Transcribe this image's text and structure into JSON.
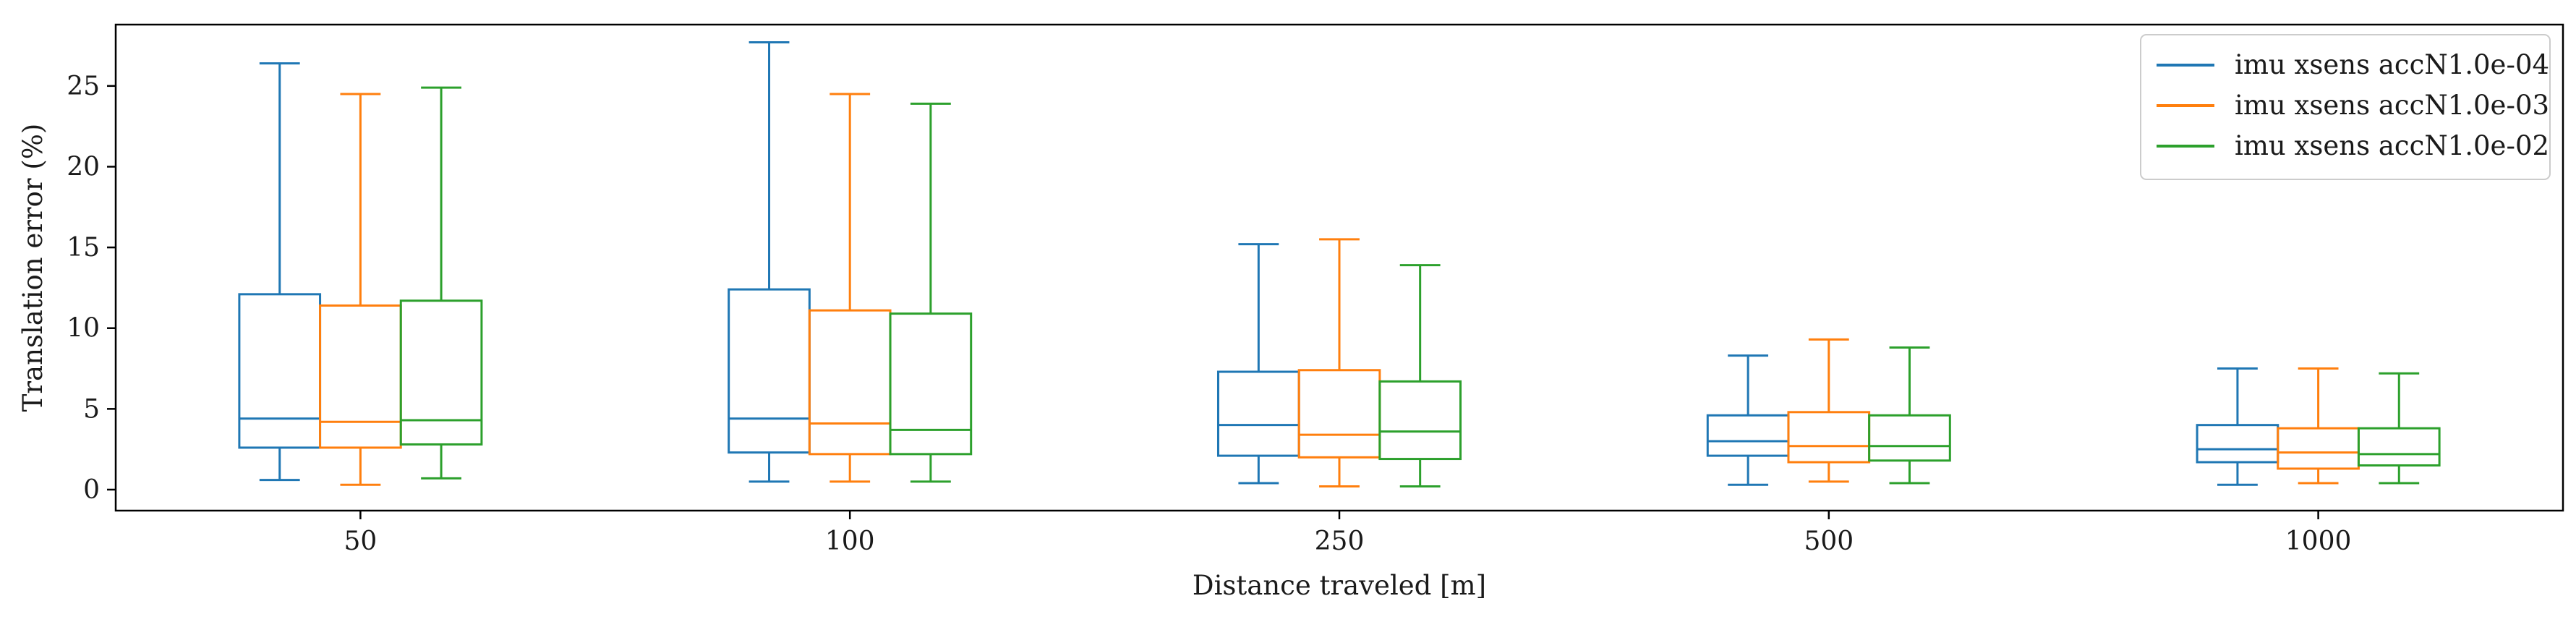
{
  "chart_data": {
    "type": "boxplot",
    "xlabel": "Distance traveled [m]",
    "ylabel": "Translation error (%)",
    "categories": [
      "50",
      "100",
      "250",
      "500",
      "1000"
    ],
    "yticks": [
      0,
      5,
      10,
      15,
      20,
      25
    ],
    "ylim": [
      -1.3,
      28.8
    ],
    "grid": false,
    "legend_position": "top-right",
    "series": [
      {
        "name": "imu xsens accN1.0e-04",
        "color": "#1f77b4",
        "boxes": [
          {
            "whisker_low": 0.6,
            "q1": 2.6,
            "median": 4.4,
            "q3": 12.1,
            "whisker_high": 26.4
          },
          {
            "whisker_low": 0.5,
            "q1": 2.3,
            "median": 4.4,
            "q3": 12.4,
            "whisker_high": 27.7
          },
          {
            "whisker_low": 0.4,
            "q1": 2.1,
            "median": 4.0,
            "q3": 7.3,
            "whisker_high": 15.2
          },
          {
            "whisker_low": 0.3,
            "q1": 2.1,
            "median": 3.0,
            "q3": 4.6,
            "whisker_high": 8.3
          },
          {
            "whisker_low": 0.3,
            "q1": 1.7,
            "median": 2.5,
            "q3": 4.0,
            "whisker_high": 7.5
          }
        ]
      },
      {
        "name": "imu xsens accN1.0e-03",
        "color": "#ff7f0e",
        "boxes": [
          {
            "whisker_low": 0.3,
            "q1": 2.6,
            "median": 4.2,
            "q3": 11.4,
            "whisker_high": 24.5
          },
          {
            "whisker_low": 0.5,
            "q1": 2.2,
            "median": 4.1,
            "q3": 11.1,
            "whisker_high": 24.5
          },
          {
            "whisker_low": 0.2,
            "q1": 2.0,
            "median": 3.4,
            "q3": 7.4,
            "whisker_high": 15.5
          },
          {
            "whisker_low": 0.5,
            "q1": 1.7,
            "median": 2.7,
            "q3": 4.8,
            "whisker_high": 9.3
          },
          {
            "whisker_low": 0.4,
            "q1": 1.3,
            "median": 2.3,
            "q3": 3.8,
            "whisker_high": 7.5
          }
        ]
      },
      {
        "name": "imu xsens accN1.0e-02",
        "color": "#2ca02c",
        "boxes": [
          {
            "whisker_low": 0.7,
            "q1": 2.8,
            "median": 4.3,
            "q3": 11.7,
            "whisker_high": 24.9
          },
          {
            "whisker_low": 0.5,
            "q1": 2.2,
            "median": 3.7,
            "q3": 10.9,
            "whisker_high": 23.9
          },
          {
            "whisker_low": 0.2,
            "q1": 1.9,
            "median": 3.6,
            "q3": 6.7,
            "whisker_high": 13.9
          },
          {
            "whisker_low": 0.4,
            "q1": 1.8,
            "median": 2.7,
            "q3": 4.6,
            "whisker_high": 8.8
          },
          {
            "whisker_low": 0.4,
            "q1": 1.5,
            "median": 2.2,
            "q3": 3.8,
            "whisker_high": 7.2
          }
        ]
      }
    ]
  }
}
